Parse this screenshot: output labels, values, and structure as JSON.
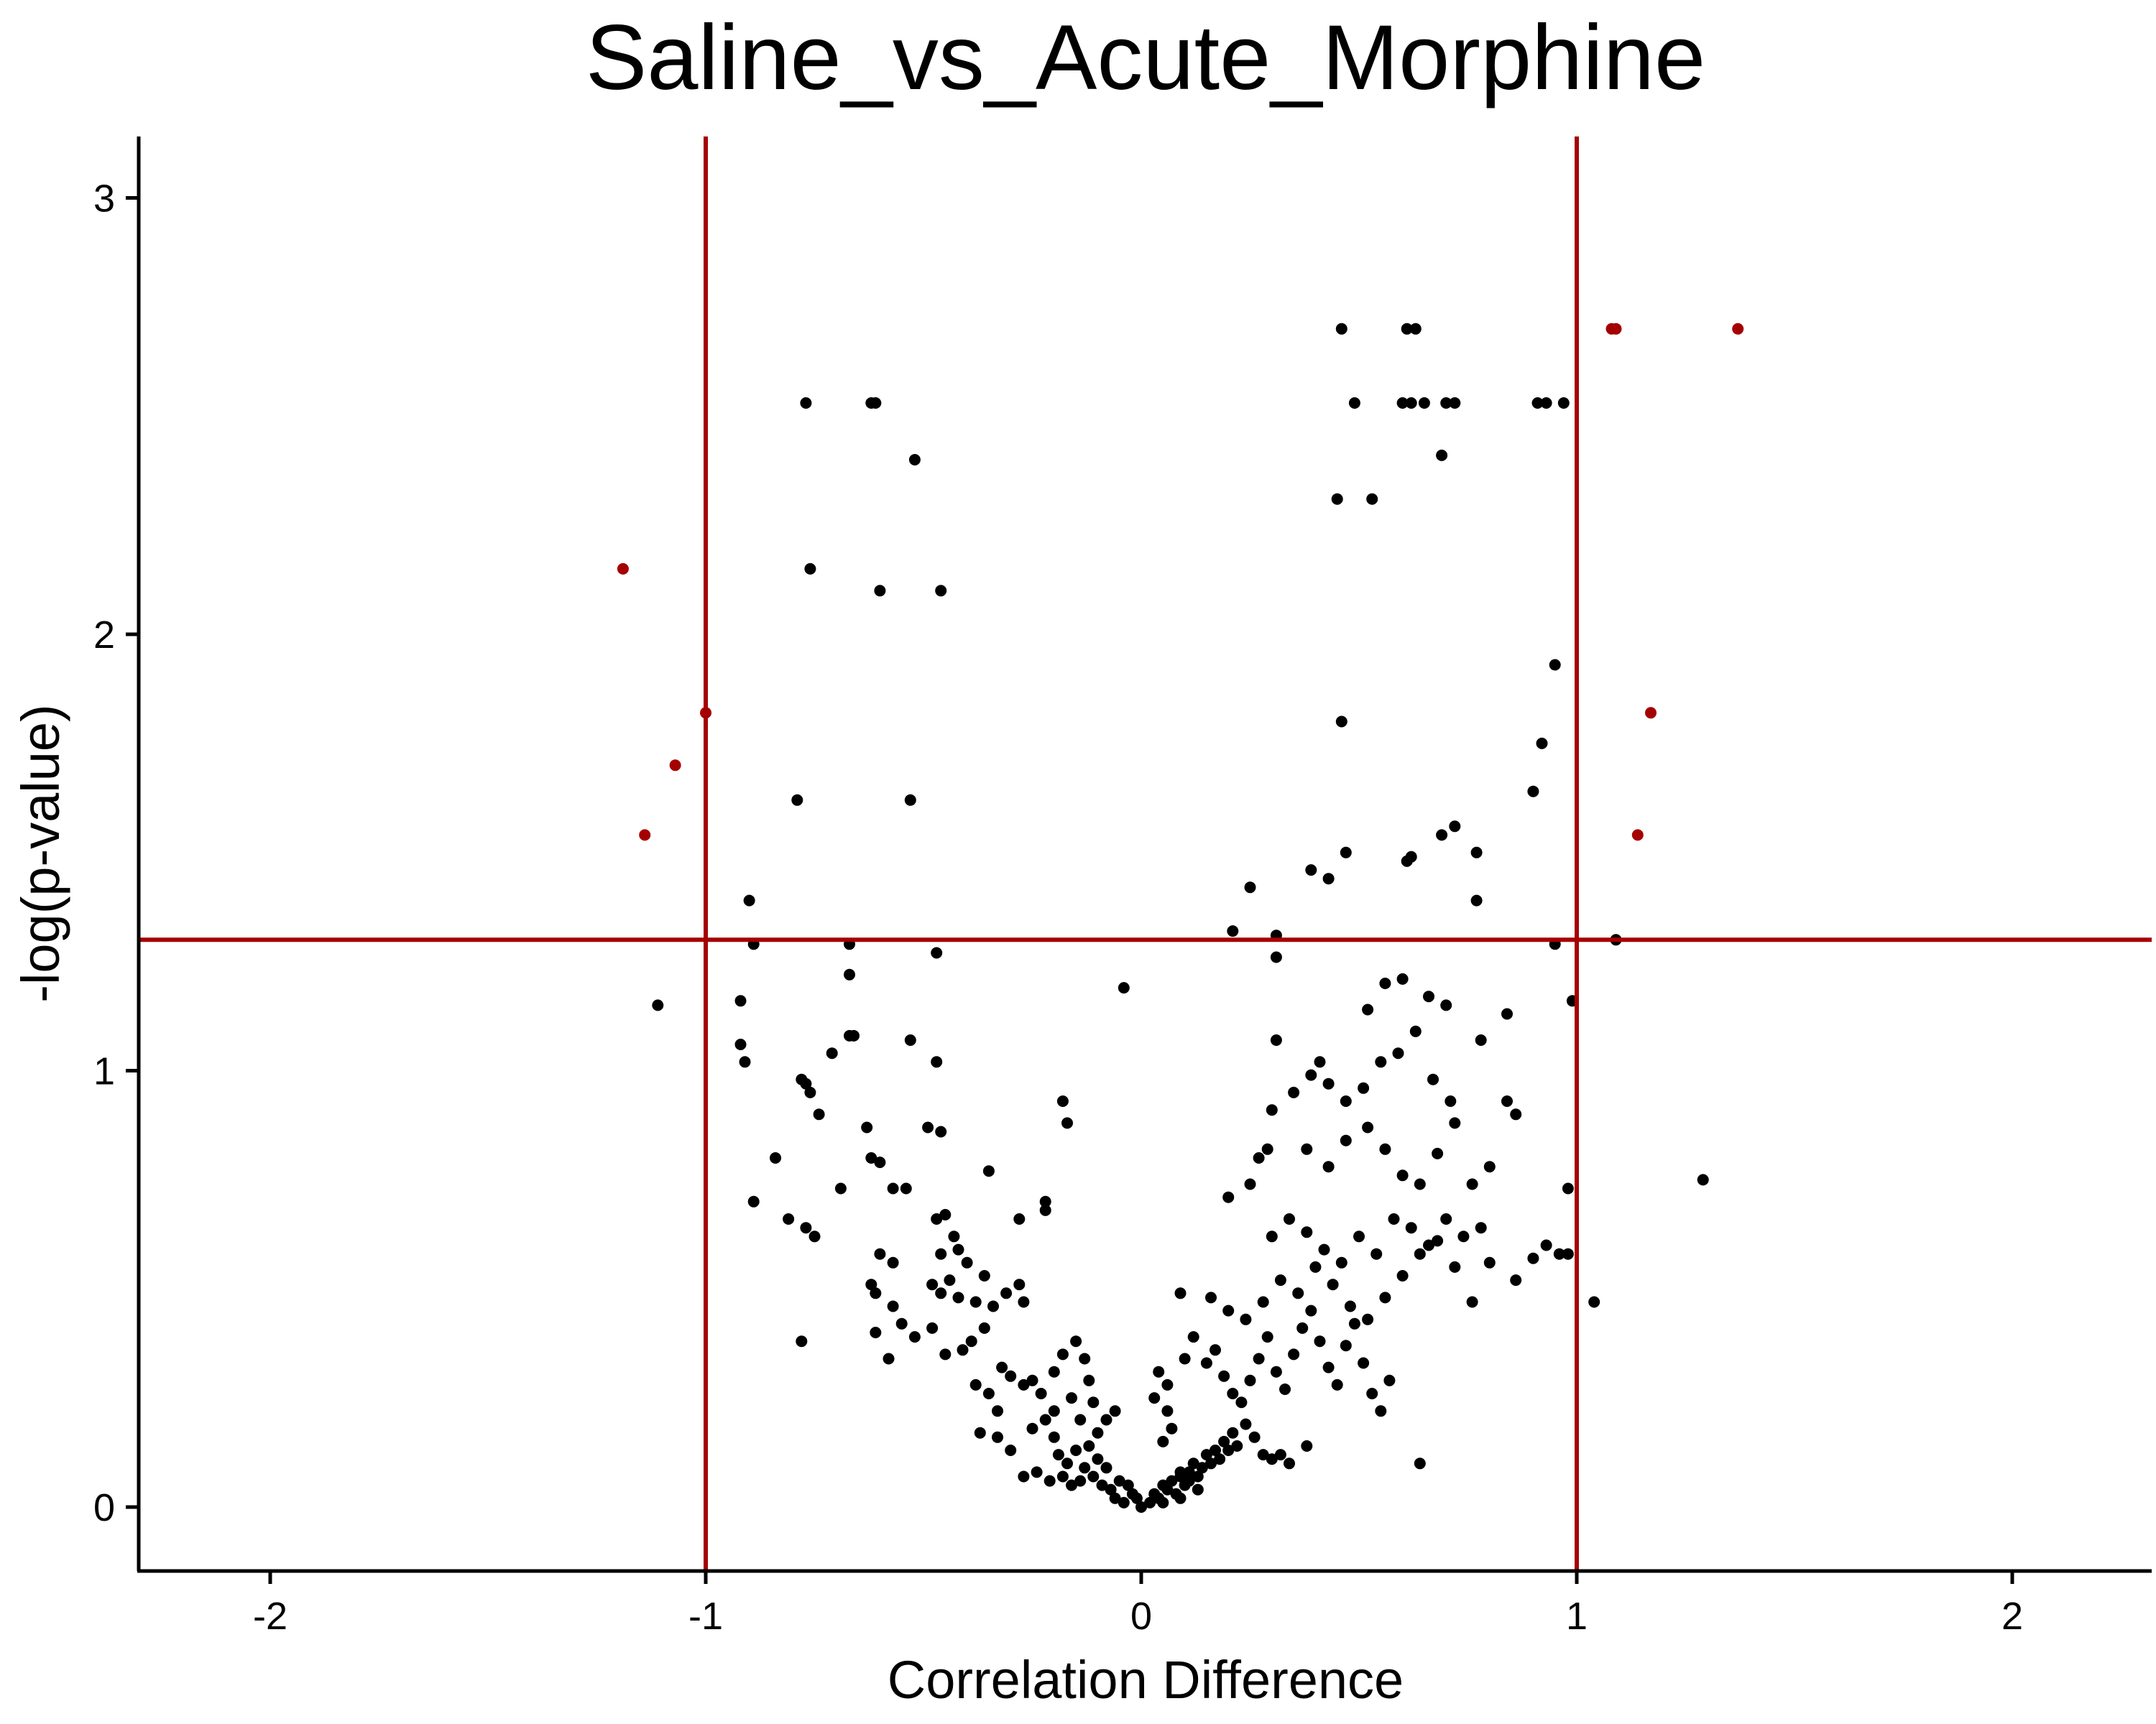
{
  "chart_data": {
    "type": "scatter",
    "title": "Saline_vs_Acute_Morphine",
    "xlabel": "Correlation Difference",
    "ylabel": "-log(p-value)",
    "xlim": [
      -2.3,
      2.3
    ],
    "ylim": [
      -0.14,
      3.15
    ],
    "x_ticks": [
      "-2",
      "-1",
      "0",
      "1",
      "2"
    ],
    "x_tick_values": [
      -2,
      -1,
      0,
      1,
      2
    ],
    "y_ticks": [
      "0",
      "1",
      "2",
      "3"
    ],
    "y_tick_values": [
      0,
      1,
      2,
      3
    ],
    "grid": false,
    "legend": "none",
    "thresholds": {
      "x": [
        -1,
        1
      ],
      "y": 1.3
    },
    "colors": {
      "point": "#000000",
      "highlight": "#a50000",
      "threshold_line": "#a50000",
      "axis": "#000000"
    },
    "points": [
      [
        -1.19,
        2.15,
        1
      ],
      [
        -1.14,
        1.54,
        1
      ],
      [
        -1.07,
        1.7,
        1
      ],
      [
        -1.0,
        1.82,
        1
      ],
      [
        1.08,
        2.7,
        1
      ],
      [
        1.09,
        2.7,
        1
      ],
      [
        1.37,
        2.7,
        1
      ],
      [
        1.17,
        1.82,
        1
      ],
      [
        1.14,
        1.54,
        1
      ],
      [
        -1.11,
        1.15,
        0
      ],
      [
        -0.9,
        1.39,
        0
      ],
      [
        -0.89,
        1.29,
        0
      ],
      [
        -0.92,
        1.16,
        0
      ],
      [
        -0.92,
        1.06,
        0
      ],
      [
        -0.91,
        1.02,
        0
      ],
      [
        -0.89,
        0.7,
        0
      ],
      [
        -0.84,
        0.8,
        0
      ],
      [
        -0.81,
        0.66,
        0
      ],
      [
        -0.79,
        1.62,
        0
      ],
      [
        -0.78,
        0.98,
        0
      ],
      [
        -0.77,
        0.97,
        0
      ],
      [
        -0.76,
        0.95,
        0
      ],
      [
        -0.74,
        0.9,
        0
      ],
      [
        -0.77,
        0.64,
        0
      ],
      [
        -0.75,
        0.62,
        0
      ],
      [
        -0.78,
        0.38,
        0
      ],
      [
        -0.77,
        2.53,
        0
      ],
      [
        -0.76,
        2.15,
        0
      ],
      [
        -0.62,
        2.53,
        0
      ],
      [
        -0.61,
        2.53,
        0
      ],
      [
        -0.52,
        2.4,
        0
      ],
      [
        -0.6,
        2.1,
        0
      ],
      [
        -0.46,
        2.1,
        0
      ],
      [
        -0.53,
        1.62,
        0
      ],
      [
        -0.67,
        1.29,
        0
      ],
      [
        -0.67,
        1.22,
        0
      ],
      [
        -0.67,
        1.08,
        0
      ],
      [
        -0.66,
        1.08,
        0
      ],
      [
        -0.71,
        1.04,
        0
      ],
      [
        -0.47,
        1.27,
        0
      ],
      [
        -0.53,
        1.07,
        0
      ],
      [
        -0.47,
        1.02,
        0
      ],
      [
        -0.49,
        0.87,
        0
      ],
      [
        -0.46,
        0.86,
        0
      ],
      [
        -0.63,
        0.87,
        0
      ],
      [
        -0.62,
        0.8,
        0
      ],
      [
        -0.6,
        0.79,
        0
      ],
      [
        -0.57,
        0.73,
        0
      ],
      [
        -0.54,
        0.73,
        0
      ],
      [
        -0.69,
        0.73,
        0
      ],
      [
        -0.35,
        0.77,
        0
      ],
      [
        -0.22,
        0.68,
        0
      ],
      [
        -0.22,
        0.7,
        0
      ],
      [
        -0.28,
        0.66,
        0
      ],
      [
        -0.18,
        0.93,
        0
      ],
      [
        -0.17,
        0.88,
        0
      ],
      [
        -0.6,
        0.58,
        0
      ],
      [
        -0.57,
        0.56,
        0
      ],
      [
        -0.62,
        0.51,
        0
      ],
      [
        -0.61,
        0.49,
        0
      ],
      [
        -0.55,
        0.42,
        0
      ],
      [
        -0.57,
        0.46,
        0
      ],
      [
        -0.61,
        0.4,
        0
      ],
      [
        -0.58,
        0.34,
        0
      ],
      [
        -0.52,
        0.39,
        0
      ],
      [
        -0.47,
        0.66,
        0
      ],
      [
        -0.45,
        0.67,
        0
      ],
      [
        -0.43,
        0.62,
        0
      ],
      [
        -0.46,
        0.58,
        0
      ],
      [
        -0.42,
        0.59,
        0
      ],
      [
        -0.4,
        0.56,
        0
      ],
      [
        -0.36,
        0.53,
        0
      ],
      [
        -0.44,
        0.52,
        0
      ],
      [
        -0.48,
        0.51,
        0
      ],
      [
        -0.46,
        0.49,
        0
      ],
      [
        -0.42,
        0.48,
        0
      ],
      [
        -0.38,
        0.47,
        0
      ],
      [
        -0.34,
        0.46,
        0
      ],
      [
        -0.31,
        0.49,
        0
      ],
      [
        -0.28,
        0.51,
        0
      ],
      [
        -0.27,
        0.47,
        0
      ],
      [
        -0.36,
        0.41,
        0
      ],
      [
        -0.39,
        0.38,
        0
      ],
      [
        -0.41,
        0.36,
        0
      ],
      [
        -0.45,
        0.35,
        0
      ],
      [
        -0.48,
        0.41,
        0
      ],
      [
        -0.32,
        0.32,
        0
      ],
      [
        -0.3,
        0.3,
        0
      ],
      [
        -0.27,
        0.28,
        0
      ],
      [
        -0.25,
        0.29,
        0
      ],
      [
        -0.23,
        0.26,
        0
      ],
      [
        -0.2,
        0.31,
        0
      ],
      [
        -0.18,
        0.35,
        0
      ],
      [
        -0.15,
        0.38,
        0
      ],
      [
        -0.13,
        0.34,
        0
      ],
      [
        -0.12,
        0.29,
        0
      ],
      [
        -0.38,
        0.28,
        0
      ],
      [
        -0.35,
        0.26,
        0
      ],
      [
        -0.33,
        0.22,
        0
      ],
      [
        -0.37,
        0.17,
        0
      ],
      [
        -0.33,
        0.16,
        0
      ],
      [
        -0.3,
        0.13,
        0
      ],
      [
        -0.25,
        0.18,
        0
      ],
      [
        -0.22,
        0.2,
        0
      ],
      [
        -0.2,
        0.16,
        0
      ],
      [
        -0.19,
        0.12,
        0
      ],
      [
        -0.17,
        0.1,
        0
      ],
      [
        -0.15,
        0.13,
        0
      ],
      [
        -0.13,
        0.09,
        0
      ],
      [
        -0.11,
        0.07,
        0
      ],
      [
        -0.09,
        0.05,
        0
      ],
      [
        -0.07,
        0.04,
        0
      ],
      [
        -0.06,
        0.02,
        0
      ],
      [
        -0.04,
        0.01,
        0
      ],
      [
        -0.02,
        0.03,
        0
      ],
      [
        -0.01,
        0.02,
        0
      ],
      [
        -0.27,
        0.07,
        0
      ],
      [
        -0.24,
        0.08,
        0
      ],
      [
        -0.21,
        0.06,
        0
      ],
      [
        -0.18,
        0.07,
        0
      ],
      [
        -0.16,
        0.05,
        0
      ],
      [
        -0.14,
        0.06,
        0
      ],
      [
        -0.12,
        0.14,
        0
      ],
      [
        -0.1,
        0.17,
        0
      ],
      [
        -0.08,
        0.2,
        0
      ],
      [
        -0.06,
        0.22,
        0
      ],
      [
        -0.1,
        0.11,
        0
      ],
      [
        -0.08,
        0.09,
        0
      ],
      [
        -0.05,
        0.06,
        0
      ],
      [
        -0.03,
        0.05,
        0
      ],
      [
        -0.2,
        0.22,
        0
      ],
      [
        -0.16,
        0.25,
        0
      ],
      [
        -0.14,
        0.2,
        0
      ],
      [
        -0.11,
        0.24,
        0
      ],
      [
        -0.04,
        1.19,
        0
      ],
      [
        0.0,
        0.0,
        0
      ],
      [
        0.02,
        0.01,
        0
      ],
      [
        0.03,
        0.03,
        0
      ],
      [
        0.04,
        0.02,
        0
      ],
      [
        0.05,
        0.05,
        0
      ],
      [
        0.06,
        0.04,
        0
      ],
      [
        0.07,
        0.06,
        0
      ],
      [
        0.08,
        0.03,
        0
      ],
      [
        0.09,
        0.07,
        0
      ],
      [
        0.1,
        0.05,
        0
      ],
      [
        0.11,
        0.08,
        0
      ],
      [
        0.12,
        0.1,
        0
      ],
      [
        0.13,
        0.07,
        0
      ],
      [
        0.14,
        0.09,
        0
      ],
      [
        0.15,
        0.12,
        0
      ],
      [
        0.16,
        0.1,
        0
      ],
      [
        0.17,
        0.13,
        0
      ],
      [
        0.18,
        0.11,
        0
      ],
      [
        0.19,
        0.15,
        0
      ],
      [
        0.2,
        0.13,
        0
      ],
      [
        0.21,
        0.17,
        0
      ],
      [
        0.22,
        0.14,
        0
      ],
      [
        0.24,
        0.19,
        0
      ],
      [
        0.26,
        0.16,
        0
      ],
      [
        0.28,
        0.12,
        0
      ],
      [
        0.3,
        0.11,
        0
      ],
      [
        0.32,
        0.12,
        0
      ],
      [
        0.34,
        0.1,
        0
      ],
      [
        0.38,
        0.14,
        0
      ],
      [
        0.05,
        0.15,
        0
      ],
      [
        0.07,
        0.18,
        0
      ],
      [
        0.06,
        0.22,
        0
      ],
      [
        0.03,
        0.25,
        0
      ],
      [
        0.04,
        0.31,
        0
      ],
      [
        0.06,
        0.28,
        0
      ],
      [
        0.09,
        0.08,
        0
      ],
      [
        0.11,
        0.06,
        0
      ],
      [
        0.13,
        0.04,
        0
      ],
      [
        0.09,
        0.02,
        0
      ],
      [
        0.05,
        0.01,
        0
      ],
      [
        0.1,
        0.34,
        0
      ],
      [
        0.12,
        0.39,
        0
      ],
      [
        0.15,
        0.33,
        0
      ],
      [
        0.17,
        0.36,
        0
      ],
      [
        0.19,
        0.3,
        0
      ],
      [
        0.21,
        0.26,
        0
      ],
      [
        0.23,
        0.24,
        0
      ],
      [
        0.25,
        0.29,
        0
      ],
      [
        0.27,
        0.34,
        0
      ],
      [
        0.29,
        0.39,
        0
      ],
      [
        0.31,
        0.31,
        0
      ],
      [
        0.33,
        0.27,
        0
      ],
      [
        0.35,
        0.35,
        0
      ],
      [
        0.37,
        0.41,
        0
      ],
      [
        0.39,
        0.45,
        0
      ],
      [
        0.41,
        0.38,
        0
      ],
      [
        0.43,
        0.32,
        0
      ],
      [
        0.45,
        0.28,
        0
      ],
      [
        0.47,
        0.37,
        0
      ],
      [
        0.49,
        0.42,
        0
      ],
      [
        0.51,
        0.33,
        0
      ],
      [
        0.53,
        0.26,
        0
      ],
      [
        0.55,
        0.22,
        0
      ],
      [
        0.57,
        0.29,
        0
      ],
      [
        0.09,
        0.49,
        0
      ],
      [
        0.16,
        0.48,
        0
      ],
      [
        0.2,
        0.45,
        0
      ],
      [
        0.24,
        0.43,
        0
      ],
      [
        0.28,
        0.47,
        0
      ],
      [
        0.32,
        0.52,
        0
      ],
      [
        0.36,
        0.49,
        0
      ],
      [
        0.4,
        0.55,
        0
      ],
      [
        0.44,
        0.51,
        0
      ],
      [
        0.48,
        0.46,
        0
      ],
      [
        0.52,
        0.43,
        0
      ],
      [
        0.56,
        0.48,
        0
      ],
      [
        0.6,
        0.53,
        0
      ],
      [
        0.64,
        0.58,
        0
      ],
      [
        0.68,
        0.61,
        0
      ],
      [
        0.72,
        0.55,
        0
      ],
      [
        0.76,
        0.47,
        0
      ],
      [
        0.8,
        0.56,
        0
      ],
      [
        0.86,
        0.52,
        0
      ],
      [
        0.3,
        0.62,
        0
      ],
      [
        0.34,
        0.66,
        0
      ],
      [
        0.38,
        0.63,
        0
      ],
      [
        0.42,
        0.59,
        0
      ],
      [
        0.46,
        0.56,
        0
      ],
      [
        0.5,
        0.62,
        0
      ],
      [
        0.54,
        0.58,
        0
      ],
      [
        0.58,
        0.66,
        0
      ],
      [
        0.62,
        0.64,
        0
      ],
      [
        0.66,
        0.6,
        0
      ],
      [
        0.7,
        0.66,
        0
      ],
      [
        0.74,
        0.62,
        0
      ],
      [
        0.78,
        0.64,
        0
      ],
      [
        0.2,
        0.71,
        0
      ],
      [
        0.25,
        0.74,
        0
      ],
      [
        0.27,
        0.8,
        0
      ],
      [
        0.29,
        0.82,
        0
      ],
      [
        0.38,
        0.82,
        0
      ],
      [
        0.43,
        0.78,
        0
      ],
      [
        0.47,
        0.84,
        0
      ],
      [
        0.52,
        0.87,
        0
      ],
      [
        0.56,
        0.82,
        0
      ],
      [
        0.6,
        0.76,
        0
      ],
      [
        0.64,
        0.74,
        0
      ],
      [
        0.68,
        0.81,
        0
      ],
      [
        0.72,
        0.88,
        0
      ],
      [
        0.76,
        0.74,
        0
      ],
      [
        0.8,
        0.78,
        0
      ],
      [
        0.3,
        0.91,
        0
      ],
      [
        0.35,
        0.95,
        0
      ],
      [
        0.39,
        0.99,
        0
      ],
      [
        0.43,
        0.97,
        0
      ],
      [
        0.47,
        0.93,
        0
      ],
      [
        0.51,
        0.96,
        0
      ],
      [
        0.55,
        1.02,
        0
      ],
      [
        0.59,
        1.04,
        0
      ],
      [
        0.63,
        1.09,
        0
      ],
      [
        0.67,
        0.98,
        0
      ],
      [
        0.71,
        0.93,
        0
      ],
      [
        0.84,
        0.93,
        0
      ],
      [
        0.86,
        0.9,
        0
      ],
      [
        0.9,
        0.57,
        0
      ],
      [
        0.93,
        0.6,
        0
      ],
      [
        0.96,
        0.58,
        0
      ],
      [
        0.98,
        0.58,
        0
      ],
      [
        0.98,
        0.73,
        0
      ],
      [
        0.31,
        1.07,
        0
      ],
      [
        0.41,
        1.02,
        0
      ],
      [
        0.52,
        1.14,
        0
      ],
      [
        0.56,
        1.2,
        0
      ],
      [
        0.6,
        1.21,
        0
      ],
      [
        0.66,
        1.17,
        0
      ],
      [
        0.7,
        1.15,
        0
      ],
      [
        0.78,
        1.07,
        0
      ],
      [
        0.84,
        1.13,
        0
      ],
      [
        0.95,
        1.29,
        0
      ],
      [
        0.99,
        1.16,
        0
      ],
      [
        1.09,
        1.3,
        0
      ],
      [
        1.29,
        0.75,
        0
      ],
      [
        1.04,
        0.47,
        0
      ],
      [
        0.64,
        0.1,
        0
      ],
      [
        0.21,
        1.32,
        0
      ],
      [
        0.25,
        1.42,
        0
      ],
      [
        0.31,
        1.31,
        0
      ],
      [
        0.31,
        1.26,
        0
      ],
      [
        0.39,
        1.46,
        0
      ],
      [
        0.43,
        1.44,
        0
      ],
      [
        0.47,
        1.5,
        0
      ],
      [
        0.61,
        1.48,
        0
      ],
      [
        0.62,
        1.49,
        0
      ],
      [
        0.69,
        1.54,
        0
      ],
      [
        0.72,
        1.56,
        0
      ],
      [
        0.77,
        1.5,
        0
      ],
      [
        0.77,
        1.39,
        0
      ],
      [
        0.9,
        1.64,
        0
      ],
      [
        0.92,
        1.75,
        0
      ],
      [
        0.95,
        1.93,
        0
      ],
      [
        0.46,
        1.8,
        0
      ],
      [
        0.45,
        2.31,
        0
      ],
      [
        0.53,
        2.31,
        0
      ],
      [
        0.69,
        2.41,
        0
      ],
      [
        0.49,
        2.53,
        0
      ],
      [
        0.6,
        2.53,
        0
      ],
      [
        0.62,
        2.53,
        0
      ],
      [
        0.65,
        2.53,
        0
      ],
      [
        0.7,
        2.53,
        0
      ],
      [
        0.72,
        2.53,
        0
      ],
      [
        0.91,
        2.53,
        0
      ],
      [
        0.93,
        2.53,
        0
      ],
      [
        0.97,
        2.53,
        0
      ],
      [
        0.46,
        2.7,
        0
      ],
      [
        0.61,
        2.7,
        0
      ],
      [
        0.63,
        2.7,
        0
      ]
    ]
  }
}
